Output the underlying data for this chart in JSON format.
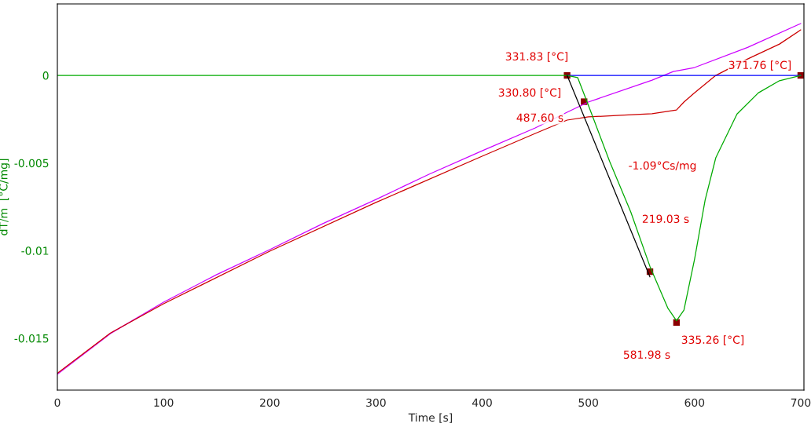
{
  "chart_data": {
    "type": "line",
    "xlabel": "Time [s]",
    "ylabel": "dT/m  [°C/mg]",
    "xlim": [
      0,
      703
    ],
    "ylim": [
      -0.01796,
      0.00408
    ],
    "xticks": [
      0,
      100,
      200,
      300,
      400,
      500,
      600,
      700
    ],
    "yticks": [
      0,
      {
        "value": -0.005,
        "label": "-0.005"
      },
      {
        "value": -0.01,
        "label": "-0.01"
      },
      {
        "value": -0.015,
        "label": "-0.015"
      }
    ],
    "grid": false,
    "series": [
      {
        "color": "#cc00ff",
        "x": [
          0,
          50,
          100,
          150,
          200,
          250,
          300,
          350,
          400,
          450,
          480,
          500,
          560,
          580,
          600,
          650,
          700
        ],
        "values": [
          -0.01705,
          -0.01473,
          -0.01294,
          -0.01137,
          -0.00994,
          -0.00846,
          -0.00708,
          -0.00564,
          -0.0043,
          -0.003,
          -0.0021,
          -0.00152,
          -0.00027,
          0.00022,
          0.00045,
          0.0016,
          0.00296
        ]
      },
      {
        "color": "#cc0000",
        "x": [
          0,
          50,
          100,
          200,
          300,
          400,
          450,
          480,
          500,
          530,
          560,
          583,
          590,
          600,
          620,
          650,
          680,
          700
        ],
        "values": [
          -0.017,
          -0.0147,
          -0.01303,
          -0.01003,
          -0.00725,
          -0.00461,
          -0.00331,
          -0.00255,
          -0.00237,
          -0.00228,
          -0.00219,
          -0.00197,
          -0.00152,
          -0.00099,
          0,
          0.00094,
          0.00179,
          0.0026
        ]
      },
      {
        "color": "#0000ff",
        "x": [
          480,
          700
        ],
        "values": [
          0,
          0
        ]
      },
      {
        "color": "#00aa00",
        "x": [
          0,
          480,
          490,
          500,
          520,
          540,
          558,
          575,
          583,
          590,
          600,
          610,
          620,
          640,
          660,
          680,
          700
        ],
        "values": [
          0,
          0,
          -0.00013,
          -0.0017,
          -0.0049,
          -0.0078,
          -0.0109,
          -0.0133,
          -0.014,
          -0.0134,
          -0.0105,
          -0.0071,
          -0.0047,
          -0.0022,
          -0.001,
          -0.0003,
          0
        ]
      },
      {
        "color": "#000000",
        "x": [
          480,
          558
        ],
        "values": [
          0,
          -0.0115
        ]
      },
      {
        "type": "scatter",
        "marker": "square",
        "color": "#8b0000",
        "x": [
          480,
          496,
          558,
          583,
          700
        ],
        "values": [
          0,
          -0.0015,
          -0.0112,
          -0.0141,
          0
        ]
      }
    ],
    "annotations": [
      "331.83 [°C]",
      "330.80 [°C]",
      "487.60 s",
      "371.76 [°C]",
      "-1.09°Cs/mg",
      "219.03 s",
      "335.26 [°C]",
      "581.98 s"
    ]
  }
}
